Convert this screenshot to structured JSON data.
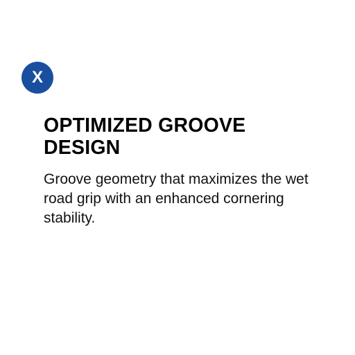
{
  "close_button": {
    "label": "X",
    "icon": "close-icon",
    "color": "#1a4fa0"
  },
  "feature": {
    "title": "OPTIMIZED GROOVE DESIGN",
    "description": "Groove geometry that maximizes the wet road grip with an enhanced cornering stability."
  }
}
